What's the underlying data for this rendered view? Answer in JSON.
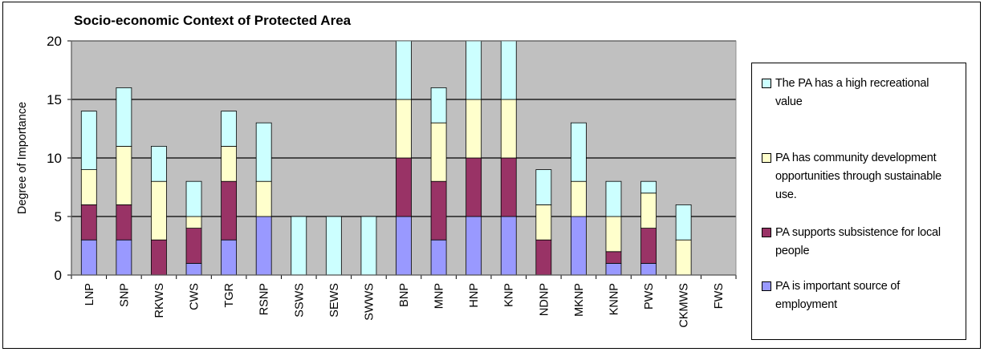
{
  "chart_data": {
    "type": "bar",
    "stacked": true,
    "title": "Socio-economic Context of Protected Area",
    "xlabel": "",
    "ylabel": "Degree of Importance",
    "ylim": [
      0,
      20
    ],
    "yticks": [
      0,
      5,
      10,
      15,
      20
    ],
    "grid": true,
    "legend_position": "right",
    "categories": [
      "LNP",
      "SNP",
      "RKWS",
      "CWS",
      "TGR",
      "RSNP",
      "SSWS",
      "SEWS",
      "SWWS",
      "BNP",
      "MNP",
      "HNP",
      "KNP",
      "NDNP",
      "MKNP",
      "KNNP",
      "PWS",
      "CKMWS",
      "FWS"
    ],
    "series": [
      {
        "name": "PA is important source of employment",
        "color": "#9999ff",
        "values": [
          3,
          3,
          0,
          1,
          3,
          5,
          0,
          0,
          0,
          5,
          3,
          5,
          5,
          0,
          5,
          1,
          1,
          0,
          0
        ]
      },
      {
        "name": "PA supports subsistence for local people",
        "color": "#993366",
        "values": [
          3,
          3,
          3,
          3,
          5,
          0,
          0,
          0,
          0,
          5,
          5,
          5,
          5,
          3,
          0,
          1,
          3,
          0,
          0
        ]
      },
      {
        "name": "PA has community development opportunities through sustainable use.",
        "color": "#ffffcc",
        "values": [
          3,
          5,
          5,
          1,
          3,
          3,
          0,
          0,
          0,
          5,
          5,
          5,
          5,
          3,
          3,
          3,
          3,
          3,
          0
        ]
      },
      {
        "name": "The PA has a high recreational value",
        "color": "#ccffff",
        "values": [
          5,
          5,
          3,
          3,
          3,
          5,
          5,
          5,
          5,
          5,
          3,
          5,
          5,
          3,
          5,
          3,
          1,
          3,
          0
        ]
      }
    ]
  },
  "legend": {
    "items": [
      {
        "text_lines": [
          "The PA has a high recreational",
          "value"
        ],
        "color": "#ccffff"
      },
      {
        "text_lines": [
          "PA has community development",
          "opportunities through sustainable",
          "use."
        ],
        "color": "#ffffcc"
      },
      {
        "text_lines": [
          "PA supports subsistence for local",
          "people"
        ],
        "color": "#993366"
      },
      {
        "text_lines": [
          "PA is important source of",
          "employment"
        ],
        "color": "#9999ff"
      }
    ]
  },
  "colors": {
    "plot_background": "#c0c0c0",
    "gridline": "#000000"
  }
}
